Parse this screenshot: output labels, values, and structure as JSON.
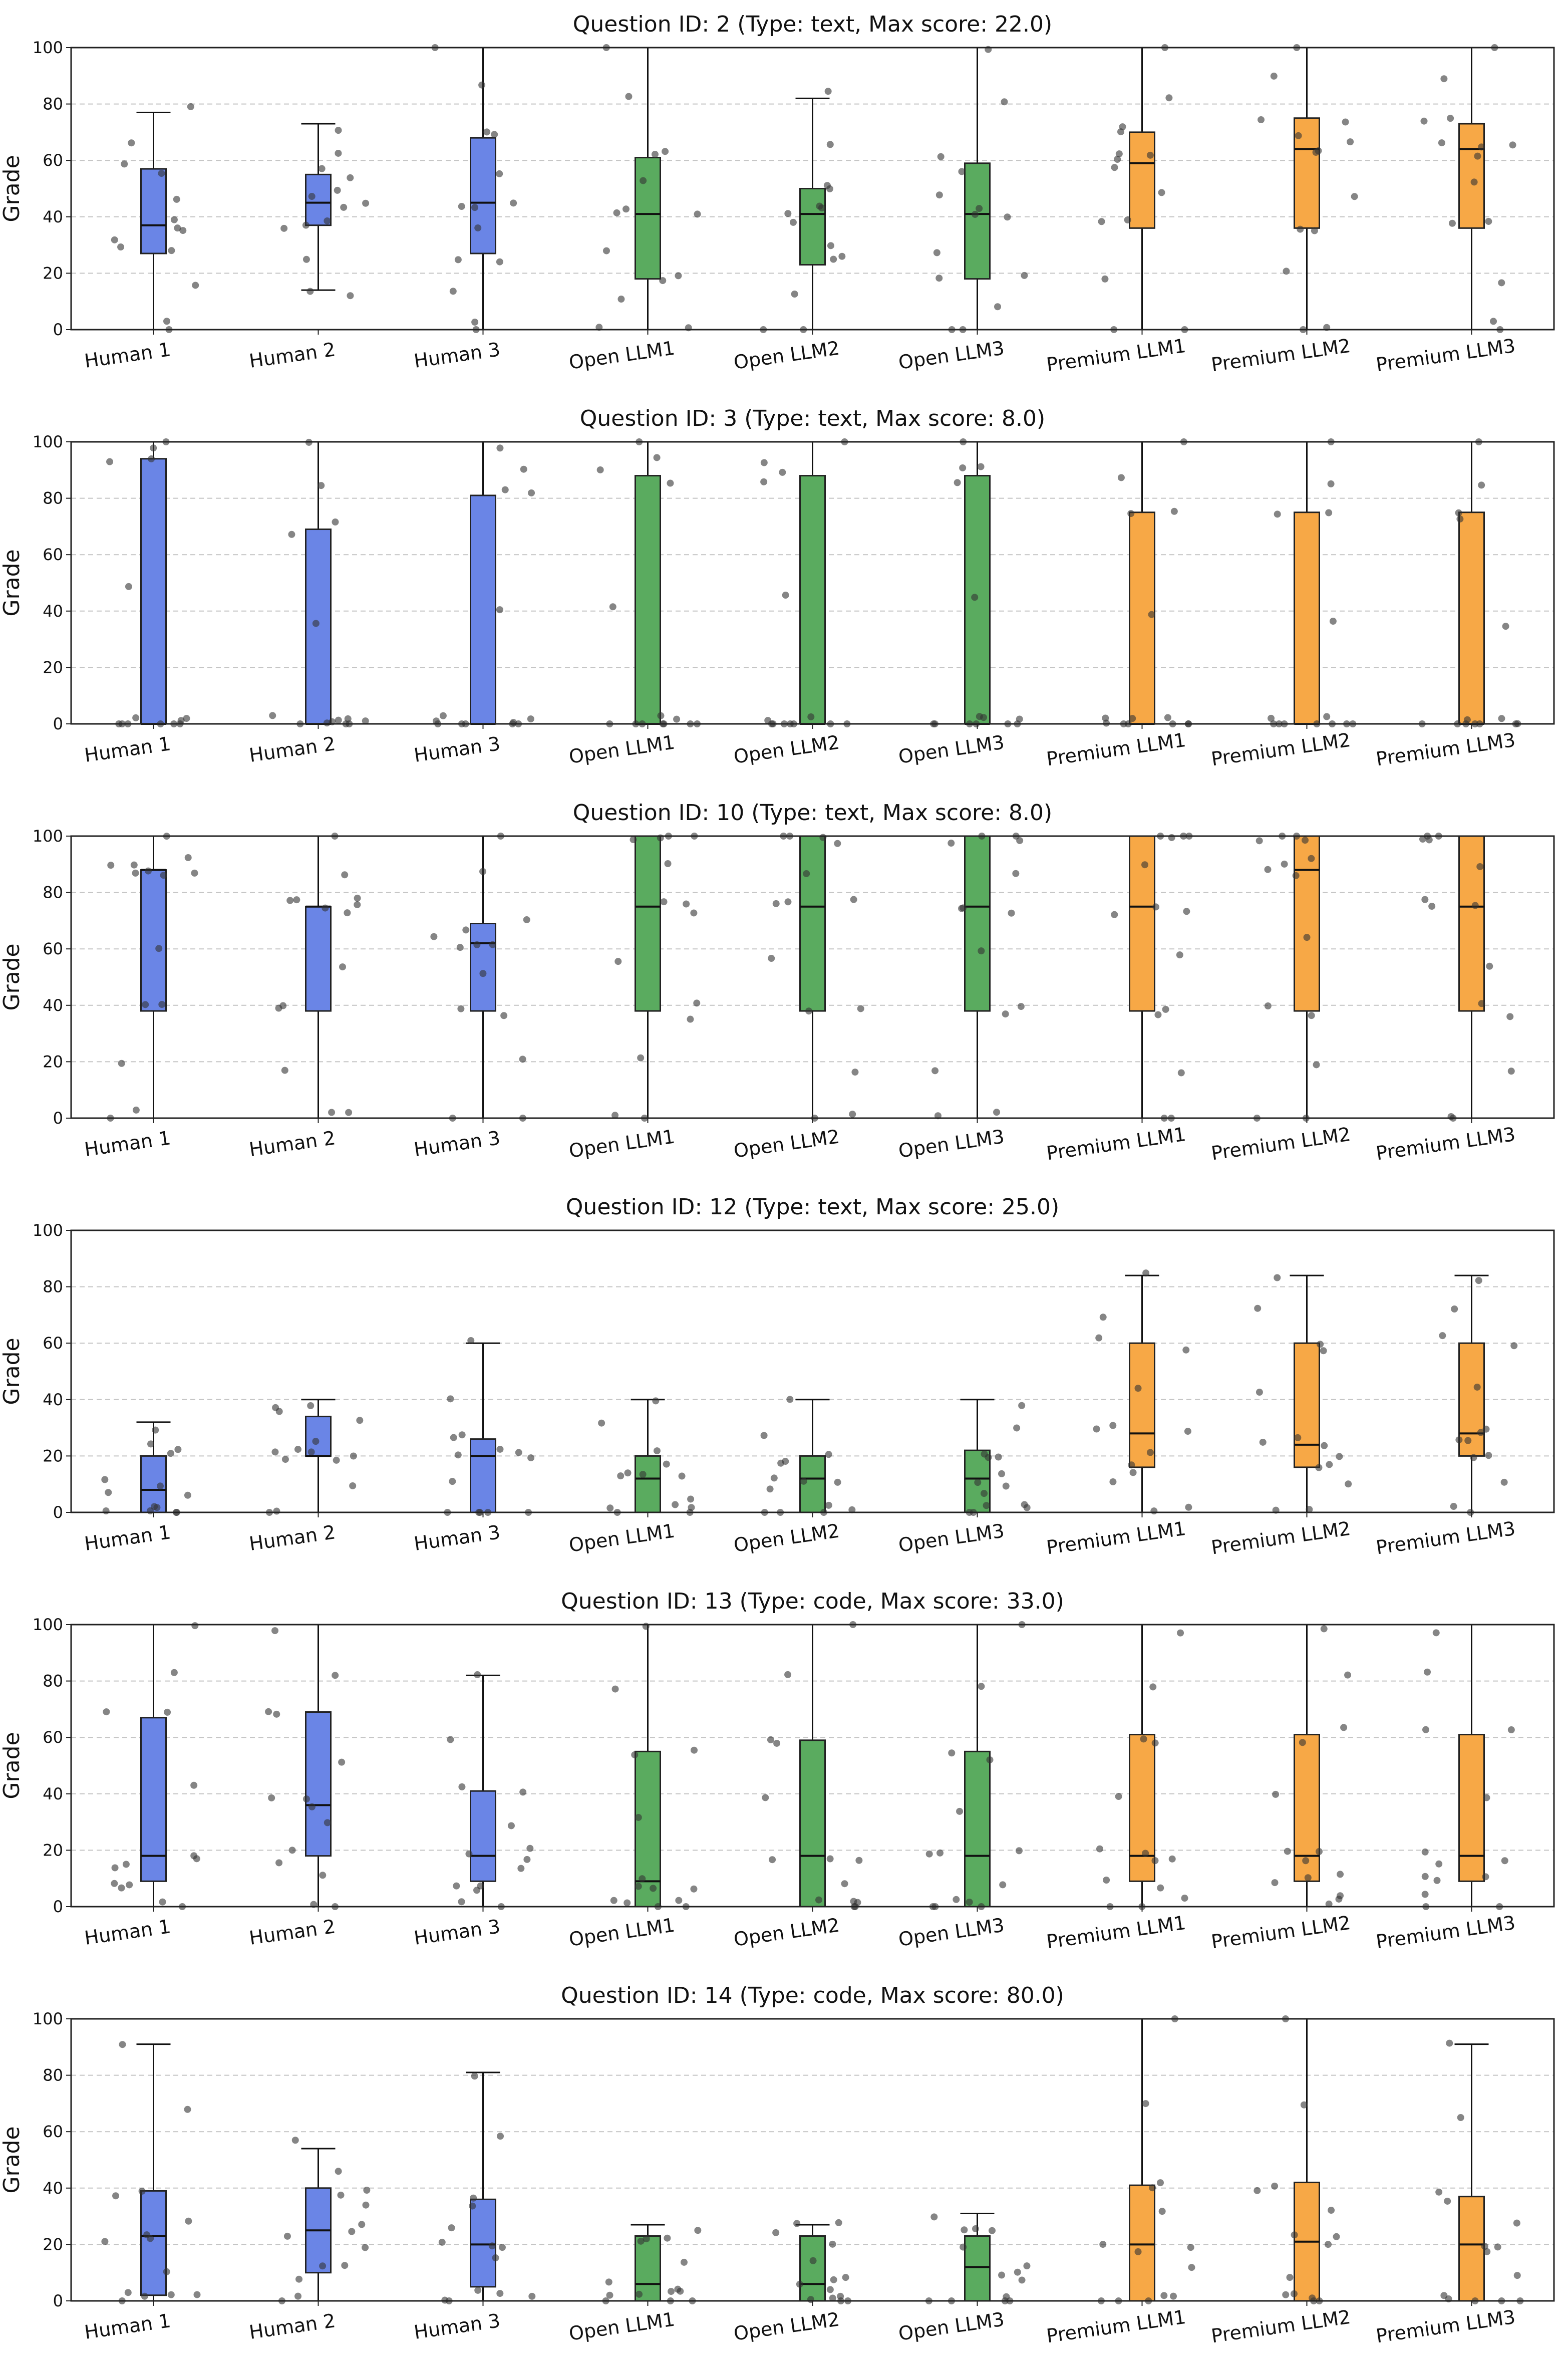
{
  "colors": {
    "human": "#6a85e6",
    "open": "#5aab5f",
    "premium": "#f7a846",
    "point": "#333333",
    "grid": "#c4c4c4",
    "frame": "#222222"
  },
  "chart_data": [
    {
      "type": "box",
      "title": "Question ID: 2 (Type: text, Max score: 22.0)",
      "ylabel": "Grade",
      "ylim": [
        0,
        100
      ],
      "yticks": [
        0,
        20,
        40,
        60,
        80,
        100
      ],
      "grid": "horizontal-dashed",
      "categories": [
        "Human 1",
        "Human 2",
        "Human 3",
        "Open LLM1",
        "Open LLM2",
        "Open LLM3",
        "Premium LLM1",
        "Premium LLM2",
        "Premium LLM3"
      ],
      "groups": [
        "human",
        "human",
        "human",
        "open",
        "open",
        "open",
        "premium",
        "premium",
        "premium"
      ],
      "boxes": [
        {
          "q1": 27,
          "median": 37,
          "q3": 57,
          "wlo": 0,
          "whi": 77
        },
        {
          "q1": 37,
          "median": 45,
          "q3": 55,
          "wlo": 14,
          "whi": 73
        },
        {
          "q1": 27,
          "median": 45,
          "q3": 68,
          "wlo": 0,
          "whi": 100
        },
        {
          "q1": 18,
          "median": 41,
          "q3": 61,
          "wlo": 0,
          "whi": 100
        },
        {
          "q1": 23,
          "median": 41,
          "q3": 50,
          "wlo": 0,
          "whi": 82
        },
        {
          "q1": 18,
          "median": 41,
          "q3": 59,
          "wlo": 0,
          "whi": 100
        },
        {
          "q1": 36,
          "median": 59,
          "q3": 70,
          "wlo": 0,
          "whi": 100
        },
        {
          "q1": 36,
          "median": 64,
          "q3": 75,
          "wlo": 0,
          "whi": 100
        },
        {
          "q1": 36,
          "median": 64,
          "q3": 73,
          "wlo": 0,
          "whi": 100
        }
      ]
    },
    {
      "type": "box",
      "title": "Question ID: 3 (Type: text, Max score: 8.0)",
      "ylabel": "Grade",
      "ylim": [
        0,
        100
      ],
      "yticks": [
        0,
        20,
        40,
        60,
        80,
        100
      ],
      "grid": "horizontal-dashed",
      "categories": [
        "Human 1",
        "Human 2",
        "Human 3",
        "Open LLM1",
        "Open LLM2",
        "Open LLM3",
        "Premium LLM1",
        "Premium LLM2",
        "Premium LLM3"
      ],
      "groups": [
        "human",
        "human",
        "human",
        "open",
        "open",
        "open",
        "premium",
        "premium",
        "premium"
      ],
      "boxes": [
        {
          "q1": 0,
          "median": 0,
          "q3": 94,
          "wlo": 0,
          "whi": 100
        },
        {
          "q1": 0,
          "median": 0,
          "q3": 69,
          "wlo": 0,
          "whi": 100
        },
        {
          "q1": 0,
          "median": 0,
          "q3": 81,
          "wlo": 0,
          "whi": 100
        },
        {
          "q1": 0,
          "median": 0,
          "q3": 88,
          "wlo": 0,
          "whi": 100
        },
        {
          "q1": 0,
          "median": 0,
          "q3": 88,
          "wlo": 0,
          "whi": 100
        },
        {
          "q1": 0,
          "median": 0,
          "q3": 88,
          "wlo": 0,
          "whi": 100
        },
        {
          "q1": 0,
          "median": 0,
          "q3": 75,
          "wlo": 0,
          "whi": 100
        },
        {
          "q1": 0,
          "median": 0,
          "q3": 75,
          "wlo": 0,
          "whi": 100
        },
        {
          "q1": 0,
          "median": 0,
          "q3": 75,
          "wlo": 0,
          "whi": 100
        }
      ]
    },
    {
      "type": "box",
      "title": "Question ID: 10 (Type: text, Max score: 8.0)",
      "ylabel": "Grade",
      "ylim": [
        0,
        100
      ],
      "yticks": [
        0,
        20,
        40,
        60,
        80,
        100
      ],
      "grid": "horizontal-dashed",
      "categories": [
        "Human 1",
        "Human 2",
        "Human 3",
        "Open LLM1",
        "Open LLM2",
        "Open LLM3",
        "Premium LLM1",
        "Premium LLM2",
        "Premium LLM3"
      ],
      "groups": [
        "human",
        "human",
        "human",
        "open",
        "open",
        "open",
        "premium",
        "premium",
        "premium"
      ],
      "boxes": [
        {
          "q1": 38,
          "median": 88,
          "q3": 88,
          "wlo": 0,
          "whi": 100
        },
        {
          "q1": 38,
          "median": 75,
          "q3": 75,
          "wlo": 0,
          "whi": 100
        },
        {
          "q1": 38,
          "median": 62,
          "q3": 69,
          "wlo": 0,
          "whi": 100
        },
        {
          "q1": 38,
          "median": 75,
          "q3": 100,
          "wlo": 0,
          "whi": 100
        },
        {
          "q1": 38,
          "median": 75,
          "q3": 100,
          "wlo": 0,
          "whi": 100
        },
        {
          "q1": 38,
          "median": 75,
          "q3": 100,
          "wlo": 0,
          "whi": 100
        },
        {
          "q1": 38,
          "median": 75,
          "q3": 100,
          "wlo": 0,
          "whi": 100
        },
        {
          "q1": 38,
          "median": 88,
          "q3": 100,
          "wlo": 0,
          "whi": 100
        },
        {
          "q1": 38,
          "median": 75,
          "q3": 100,
          "wlo": 0,
          "whi": 100
        }
      ]
    },
    {
      "type": "box",
      "title": "Question ID: 12 (Type: text, Max score: 25.0)",
      "ylabel": "Grade",
      "ylim": [
        0,
        100
      ],
      "yticks": [
        0,
        20,
        40,
        60,
        80,
        100
      ],
      "grid": "horizontal-dashed",
      "categories": [
        "Human 1",
        "Human 2",
        "Human 3",
        "Open LLM1",
        "Open LLM2",
        "Open LLM3",
        "Premium LLM1",
        "Premium LLM2",
        "Premium LLM3"
      ],
      "groups": [
        "human",
        "human",
        "human",
        "open",
        "open",
        "open",
        "premium",
        "premium",
        "premium"
      ],
      "boxes": [
        {
          "q1": 0,
          "median": 8,
          "q3": 20,
          "wlo": 0,
          "whi": 32
        },
        {
          "q1": 20,
          "median": 20,
          "q3": 34,
          "wlo": 0,
          "whi": 40
        },
        {
          "q1": 0,
          "median": 20,
          "q3": 26,
          "wlo": 0,
          "whi": 60
        },
        {
          "q1": 0,
          "median": 12,
          "q3": 20,
          "wlo": 0,
          "whi": 40
        },
        {
          "q1": 0,
          "median": 12,
          "q3": 20,
          "wlo": 0,
          "whi": 40
        },
        {
          "q1": 0,
          "median": 12,
          "q3": 22,
          "wlo": 0,
          "whi": 40
        },
        {
          "q1": 16,
          "median": 28,
          "q3": 60,
          "wlo": 0,
          "whi": 84
        },
        {
          "q1": 16,
          "median": 24,
          "q3": 60,
          "wlo": 0,
          "whi": 84
        },
        {
          "q1": 20,
          "median": 28,
          "q3": 60,
          "wlo": 0,
          "whi": 84
        }
      ]
    },
    {
      "type": "box",
      "title": "Question ID: 13 (Type: code, Max score: 33.0)",
      "ylabel": "Grade",
      "ylim": [
        0,
        100
      ],
      "yticks": [
        0,
        20,
        40,
        60,
        80,
        100
      ],
      "grid": "horizontal-dashed",
      "categories": [
        "Human 1",
        "Human 2",
        "Human 3",
        "Open LLM1",
        "Open LLM2",
        "Open LLM3",
        "Premium LLM1",
        "Premium LLM2",
        "Premium LLM3"
      ],
      "groups": [
        "human",
        "human",
        "human",
        "open",
        "open",
        "open",
        "premium",
        "premium",
        "premium"
      ],
      "boxes": [
        {
          "q1": 9,
          "median": 18,
          "q3": 67,
          "wlo": 0,
          "whi": 100
        },
        {
          "q1": 18,
          "median": 36,
          "q3": 69,
          "wlo": 0,
          "whi": 100
        },
        {
          "q1": 9,
          "median": 18,
          "q3": 41,
          "wlo": 0,
          "whi": 82
        },
        {
          "q1": 0,
          "median": 9,
          "q3": 55,
          "wlo": 0,
          "whi": 100
        },
        {
          "q1": 0,
          "median": 18,
          "q3": 59,
          "wlo": 0,
          "whi": 100
        },
        {
          "q1": 0,
          "median": 18,
          "q3": 55,
          "wlo": 0,
          "whi": 100
        },
        {
          "q1": 9,
          "median": 18,
          "q3": 61,
          "wlo": 0,
          "whi": 100
        },
        {
          "q1": 9,
          "median": 18,
          "q3": 61,
          "wlo": 0,
          "whi": 100
        },
        {
          "q1": 9,
          "median": 18,
          "q3": 61,
          "wlo": 0,
          "whi": 100
        }
      ]
    },
    {
      "type": "box",
      "title": "Question ID: 14 (Type: code, Max score: 80.0)",
      "ylabel": "Grade",
      "ylim": [
        0,
        100
      ],
      "yticks": [
        0,
        20,
        40,
        60,
        80,
        100
      ],
      "grid": "horizontal-dashed",
      "categories": [
        "Human 1",
        "Human 2",
        "Human 3",
        "Open LLM1",
        "Open LLM2",
        "Open LLM3",
        "Premium LLM1",
        "Premium LLM2",
        "Premium LLM3"
      ],
      "groups": [
        "human",
        "human",
        "human",
        "open",
        "open",
        "open",
        "premium",
        "premium",
        "premium"
      ],
      "boxes": [
        {
          "q1": 2,
          "median": 23,
          "q3": 39,
          "wlo": 0,
          "whi": 91
        },
        {
          "q1": 10,
          "median": 25,
          "q3": 40,
          "wlo": 0,
          "whi": 54
        },
        {
          "q1": 5,
          "median": 20,
          "q3": 36,
          "wlo": 0,
          "whi": 81
        },
        {
          "q1": 0,
          "median": 6,
          "q3": 23,
          "wlo": 0,
          "whi": 27
        },
        {
          "q1": 0,
          "median": 6,
          "q3": 23,
          "wlo": 0,
          "whi": 27
        },
        {
          "q1": 0,
          "median": 12,
          "q3": 23,
          "wlo": 0,
          "whi": 31
        },
        {
          "q1": 0,
          "median": 20,
          "q3": 41,
          "wlo": 0,
          "whi": 100
        },
        {
          "q1": 0,
          "median": 21,
          "q3": 42,
          "wlo": 0,
          "whi": 100
        },
        {
          "q1": 0,
          "median": 20,
          "q3": 37,
          "wlo": 0,
          "whi": 91
        }
      ]
    }
  ]
}
